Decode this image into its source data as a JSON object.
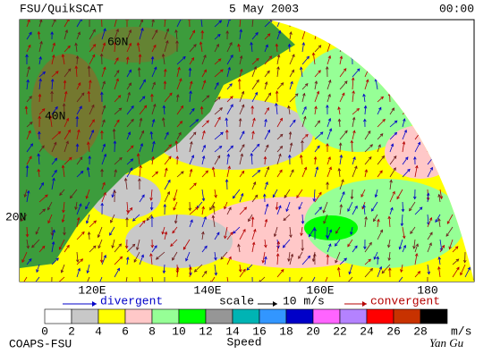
{
  "header": {
    "title": "FSU/QuikSCAT",
    "date": "5 May 2003",
    "time": "00:00"
  },
  "map": {
    "lat_labels": [
      "60N",
      "40N",
      "20N"
    ],
    "lon_labels": [
      "120E",
      "140E",
      "160E",
      "180"
    ]
  },
  "legend": {
    "divergent": "divergent",
    "scale": "scale",
    "scale_value": "10 m/s",
    "convergent": "convergent"
  },
  "colorbar": {
    "labels": [
      "0",
      "2",
      "4",
      "6",
      "8",
      "10",
      "12",
      "14",
      "16",
      "18",
      "20",
      "22",
      "24",
      "26",
      "28"
    ],
    "colors": [
      "#ffffff",
      "#c8c8c8",
      "#ffff00",
      "#ffc8c8",
      "#96ff96",
      "#00ff00",
      "#969696",
      "#00b4b4",
      "#3296ff",
      "#0000c8",
      "#ff64ff",
      "#b482ff",
      "#ff0000",
      "#c83200",
      "#000000"
    ],
    "unit": "m/s",
    "title": "Speed"
  },
  "footer": {
    "left": "COAPS-FSU",
    "right": "Yan Gu"
  }
}
